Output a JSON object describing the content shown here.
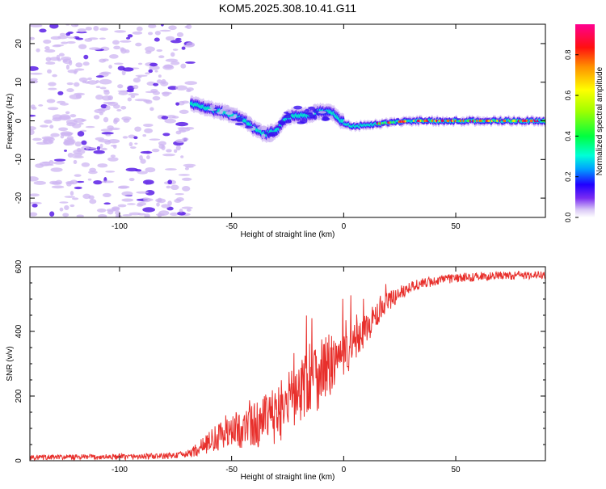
{
  "title": "KOM5.2025.308.10.41.G11",
  "colors": {
    "snr_line": "#e8302c",
    "ridge_hot": "#e8005a",
    "speckle_light": "#cdb6f2",
    "speckle_dark": "#5a1ee6"
  },
  "chart_data": [
    {
      "type": "heatmap",
      "name": "spectrogram",
      "xlabel": "Height of straight line (km)",
      "ylabel": "Frequency (Hz)",
      "xlim": [
        -140,
        90
      ],
      "ylim": [
        -25,
        25
      ],
      "xticks": [
        -100,
        -50,
        0,
        50
      ],
      "yticks": [
        20,
        10,
        0,
        -10,
        -20
      ],
      "ridge": {
        "x": [
          -68,
          -65,
          -60,
          -55,
          -50,
          -45,
          -40,
          -35,
          -30,
          -25,
          -20,
          -15,
          -10,
          -5,
          0,
          5,
          10,
          20,
          30,
          40,
          50,
          60,
          70,
          80,
          90
        ],
        "freq": [
          4.5,
          4.0,
          3.0,
          2.5,
          1.5,
          0.5,
          -2.0,
          -3.5,
          -2.5,
          1.0,
          1.5,
          1.5,
          2.5,
          2.0,
          -0.5,
          -1.5,
          -1.0,
          -0.5,
          0.0,
          0.0,
          0.0,
          0.0,
          0.0,
          0.0,
          0.0
        ]
      },
      "colorbar": {
        "label": "Normalized spectral amplitude",
        "ticks": [
          "0.0",
          "0.2",
          "0.4",
          "0.6",
          "0.8"
        ],
        "range": [
          0,
          0.95
        ]
      }
    },
    {
      "type": "line",
      "name": "snr",
      "xlabel": "Height of straight line (km)",
      "ylabel": "SNR (v/v)",
      "xlim": [
        -140,
        90
      ],
      "ylim": [
        0,
        600
      ],
      "xticks": [
        -100,
        -50,
        0,
        50
      ],
      "yticks": [
        0,
        200,
        400,
        600
      ],
      "trend": {
        "x": [
          -140,
          -100,
          -80,
          -70,
          -65,
          -60,
          -50,
          -40,
          -30,
          -20,
          -15,
          -10,
          -5,
          0,
          5,
          10,
          15,
          20,
          25,
          30,
          40,
          50,
          60,
          70,
          90
        ],
        "y": [
          10,
          12,
          14,
          20,
          35,
          60,
          90,
          110,
          140,
          210,
          260,
          280,
          300,
          320,
          360,
          410,
          450,
          490,
          520,
          540,
          555,
          565,
          570,
          572,
          575
        ]
      },
      "noise": {
        "x": [
          -140,
          -70,
          -60,
          -40,
          -20,
          -10,
          0,
          10,
          20,
          30,
          50,
          90
        ],
        "amp": [
          8,
          10,
          35,
          70,
          110,
          120,
          70,
          50,
          30,
          18,
          14,
          12
        ]
      }
    }
  ]
}
